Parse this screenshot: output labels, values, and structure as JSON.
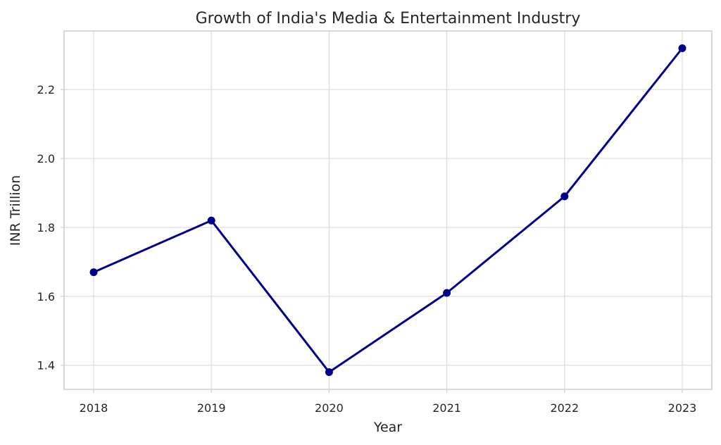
{
  "chart_data": {
    "type": "line",
    "title": "Growth of India's Media & Entertainment Industry",
    "xlabel": "Year",
    "ylabel": "INR Trillion",
    "x": [
      "2018",
      "2019",
      "2020",
      "2021",
      "2022",
      "2023"
    ],
    "series": [
      {
        "values": [
          1.67,
          1.82,
          1.38,
          1.61,
          1.89,
          2.32
        ],
        "color": "#00008b",
        "marker": "circle"
      }
    ],
    "yticks": [
      "1.4",
      "1.6",
      "1.8",
      "2.0",
      "2.2"
    ],
    "ylim": [
      1.33,
      2.37
    ],
    "grid": true,
    "legend": "none"
  }
}
